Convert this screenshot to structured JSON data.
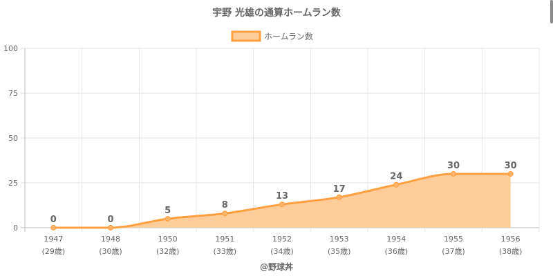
{
  "chart_data": {
    "type": "area",
    "title": "宇野 光雄の通算ホームラン数",
    "series": [
      {
        "name": "ホームラン数",
        "values": [
          0,
          0,
          5,
          8,
          13,
          17,
          24,
          30,
          30
        ]
      }
    ],
    "categories": [
      "1947",
      "1948",
      "1950",
      "1951",
      "1952",
      "1953",
      "1954",
      "1955",
      "1956"
    ],
    "ages": [
      "(29歳)",
      "(30歳)",
      "(32歳)",
      "(33歳)",
      "(34歳)",
      "(35歳)",
      "(36歳)",
      "(37歳)",
      "(38歳)"
    ],
    "ylim": [
      0,
      100
    ],
    "yticks": [
      "0",
      "25",
      "50",
      "75",
      "100"
    ],
    "grid": true,
    "legend": "top",
    "line_color": "#ff9f40",
    "fill_color": "#ffcd99",
    "point_color": "#ffb366"
  },
  "footer": {
    "credit": "@野球丼"
  }
}
